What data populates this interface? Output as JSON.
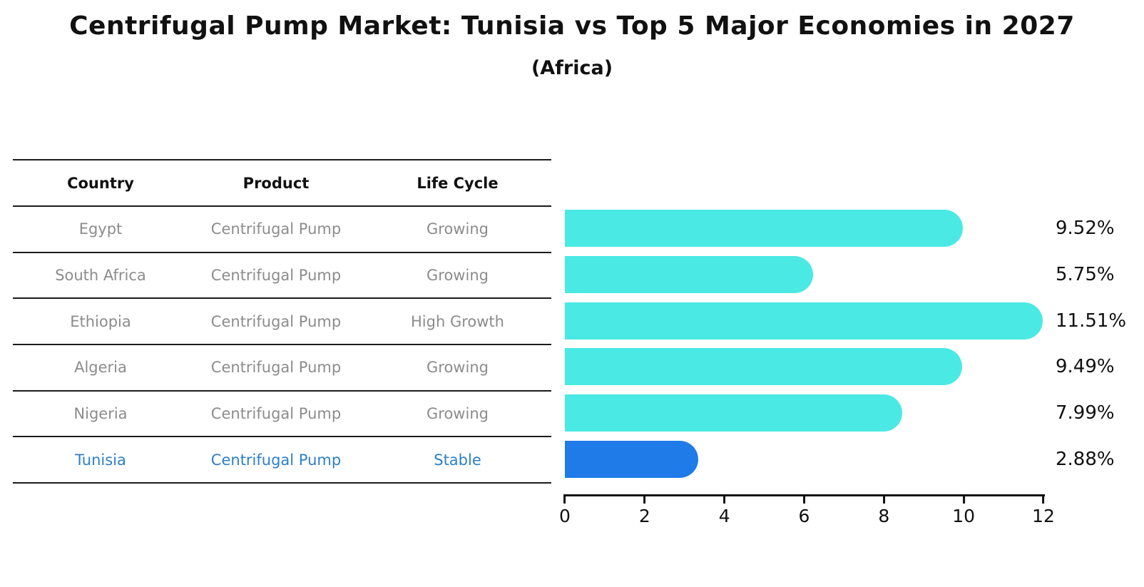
{
  "title": "Centrifugal Pump Market: Tunisia vs Top 5 Major Economies in 2027",
  "subtitle": "(Africa)",
  "table": {
    "headers": [
      "Country",
      "Product",
      "Life Cycle"
    ],
    "rows": [
      {
        "country": "Egypt",
        "product": "Centrifugal Pump",
        "life_cycle": "Growing"
      },
      {
        "country": "South Africa",
        "product": "Centrifugal Pump",
        "life_cycle": "Growing"
      },
      {
        "country": "Ethiopia",
        "product": "Centrifugal Pump",
        "life_cycle": "High Growth"
      },
      {
        "country": "Algeria",
        "product": "Centrifugal Pump",
        "life_cycle": "Growing"
      },
      {
        "country": "Nigeria",
        "product": "Centrifugal Pump",
        "life_cycle": "Growing"
      },
      {
        "country": "Tunisia",
        "product": "Centrifugal Pump",
        "life_cycle": "Stable"
      }
    ],
    "highlight_row": "Tunisia"
  },
  "chart_data": {
    "type": "bar",
    "orientation": "horizontal",
    "categories": [
      "Egypt",
      "South Africa",
      "Ethiopia",
      "Algeria",
      "Nigeria",
      "Tunisia"
    ],
    "values": [
      9.52,
      5.75,
      11.51,
      9.49,
      7.99,
      2.88
    ],
    "labels": [
      "9.52%",
      "5.75%",
      "11.51%",
      "9.49%",
      "7.99%",
      "2.88%"
    ],
    "unit": "%",
    "xlim": [
      0,
      12
    ],
    "xticks": [
      0,
      2,
      4,
      6,
      8,
      10,
      12
    ],
    "grid": false,
    "legend": false,
    "bar_color": "#4AE9E4",
    "highlight_bar_color": "#1E7BE8",
    "highlight_index": 5,
    "highlight_text_color": "#2E7FC9"
  },
  "colors": {
    "background": "#FFFFFF",
    "bar_cyan": "#4AE9E4",
    "bar_blue": "#1E7BE8",
    "table_text_gray": "#8C8C8C",
    "highlight_blue": "#2E7FC9",
    "axis_black": "#111111"
  }
}
